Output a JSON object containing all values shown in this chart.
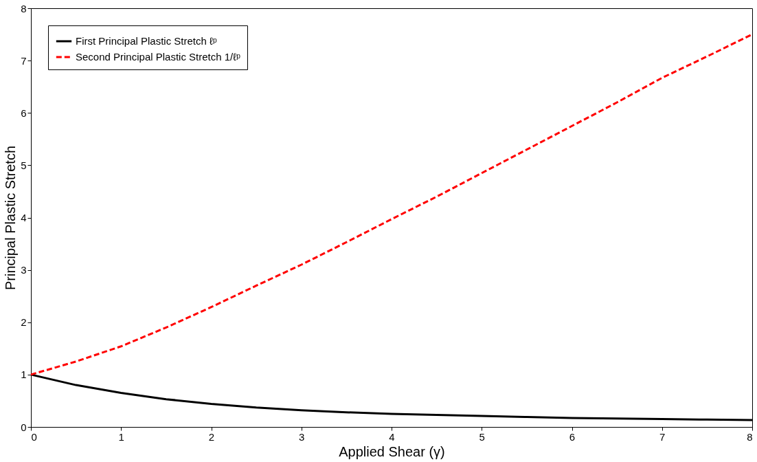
{
  "chart_data": {
    "type": "line",
    "xlabel": "Applied Shear (γ)",
    "ylabel": "Principal Plastic Stretch",
    "x": [
      0,
      0.5,
      1,
      1.5,
      2,
      2.5,
      3,
      3.5,
      4,
      4.5,
      5,
      5.5,
      6,
      6.5,
      7,
      7.5,
      8
    ],
    "series": [
      {
        "name": "First Principal Plastic Stretch ℓᵖ",
        "color": "#000000",
        "line_style": "solid",
        "values": [
          1,
          0.8,
          0.65,
          0.53,
          0.44,
          0.37,
          0.32,
          0.28,
          0.25,
          0.23,
          0.21,
          0.19,
          0.17,
          0.16,
          0.15,
          0.14,
          0.13
        ]
      },
      {
        "name": "Second Principal Plastic Stretch 1/ℓᵖ",
        "color": "#ff0000",
        "line_style": "dashed",
        "values": [
          1,
          1.25,
          1.54,
          1.9,
          2.29,
          2.7,
          3.1,
          3.53,
          3.97,
          4.4,
          4.85,
          5.3,
          5.75,
          6.2,
          6.67,
          7.08,
          7.5
        ]
      }
    ],
    "xlim": [
      0,
      8
    ],
    "ylim": [
      0,
      8
    ],
    "xticks": [
      0,
      1,
      2,
      3,
      4,
      5,
      6,
      7,
      8
    ],
    "yticks": [
      0,
      1,
      2,
      3,
      4,
      5,
      6,
      7,
      8
    ],
    "grid": false,
    "legend": "top left",
    "marker": "none"
  }
}
